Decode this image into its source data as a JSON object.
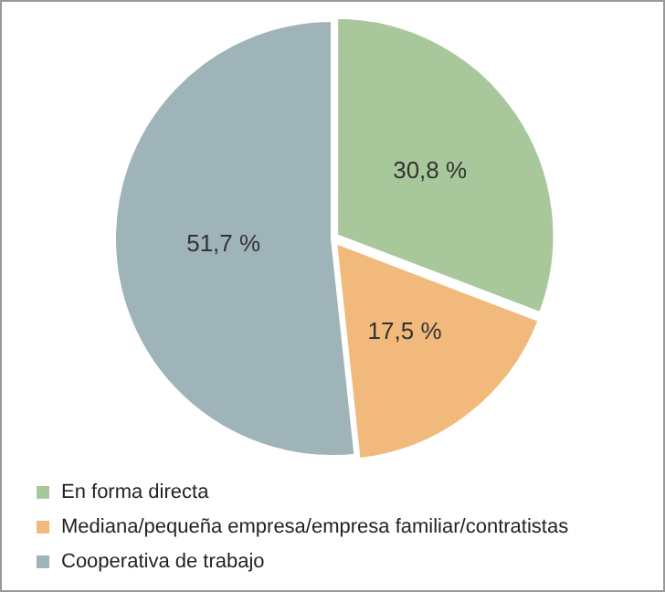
{
  "chart_data": {
    "type": "pie",
    "categories": [
      "En forma directa",
      "Mediana/pequeña empresa/empresa familiar/contratistas",
      "Cooperativa de trabajo"
    ],
    "values": [
      30.8,
      17.5,
      51.7
    ],
    "colors": [
      "#a8c89b",
      "#f2b97c",
      "#9fb4b8"
    ],
    "value_labels": [
      "30,8 %",
      "17,5 %",
      "51,7 %"
    ],
    "legend": "bottom"
  }
}
